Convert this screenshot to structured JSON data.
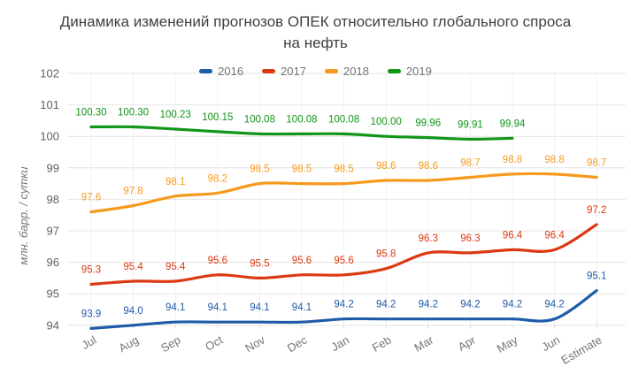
{
  "chart_data": {
    "type": "line",
    "title": "Динамика изменений прогнозов ОПЕК относительно глобального спроса на нефть",
    "title_lines": [
      "Динамика изменений прогнозов ОПЕК относительно глобального спроса",
      "на нефть"
    ],
    "xlabel": "",
    "ylabel": "млн. барр. / сутки",
    "categories": [
      "Jul",
      "Aug",
      "Sep",
      "Oct",
      "Nov",
      "Dec",
      "Jan",
      "Feb",
      "Mar",
      "Apr",
      "May",
      "Jun",
      "Estimate"
    ],
    "ylim": [
      94,
      102
    ],
    "yticks": [
      102,
      101,
      100,
      99,
      98,
      97,
      96,
      95,
      94
    ],
    "grid": true,
    "legend_position": "top",
    "series": [
      {
        "name": "2016",
        "color": "#1e5ba9",
        "values": [
          93.9,
          94.0,
          94.1,
          94.1,
          94.1,
          94.1,
          94.2,
          94.2,
          94.2,
          94.2,
          94.2,
          94.2,
          95.1
        ],
        "labels": [
          "93.9",
          "94.0",
          "94.1",
          "94.1",
          "94.1",
          "94.1",
          "94.2",
          "94.2",
          "94.2",
          "94.2",
          "94.2",
          "94.2",
          "95.1"
        ]
      },
      {
        "name": "2017",
        "color": "#dc3912",
        "values": [
          95.3,
          95.4,
          95.4,
          95.6,
          95.5,
          95.6,
          95.6,
          95.8,
          96.3,
          96.3,
          96.4,
          96.4,
          97.2
        ],
        "labels": [
          "95.3",
          "95.4",
          "95.4",
          "95.6",
          "95.5",
          "95.6",
          "95.6",
          "95.8",
          "96.3",
          "96.3",
          "96.4",
          "96.4",
          "97.2"
        ]
      },
      {
        "name": "2018",
        "color": "#f6991d",
        "values": [
          97.6,
          97.8,
          98.1,
          98.2,
          98.5,
          98.5,
          98.5,
          98.6,
          98.6,
          98.7,
          98.8,
          98.8,
          98.7
        ],
        "labels": [
          "97.6",
          "97.8",
          "98.1",
          "98.2",
          "98.5",
          "98.5",
          "98.5",
          "98.6",
          "98.6",
          "98.7",
          "98.8",
          "98.8",
          "98.7"
        ]
      },
      {
        "name": "2019",
        "color": "#109618",
        "values": [
          100.3,
          100.3,
          100.23,
          100.15,
          100.08,
          100.08,
          100.08,
          100.0,
          99.96,
          99.91,
          99.94
        ],
        "labels": [
          "100.30",
          "100.30",
          "100.23",
          "100.15",
          "100.08",
          "100.08",
          "100.08",
          "100.00",
          "99.96",
          "99.91",
          "99.94"
        ]
      }
    ]
  }
}
